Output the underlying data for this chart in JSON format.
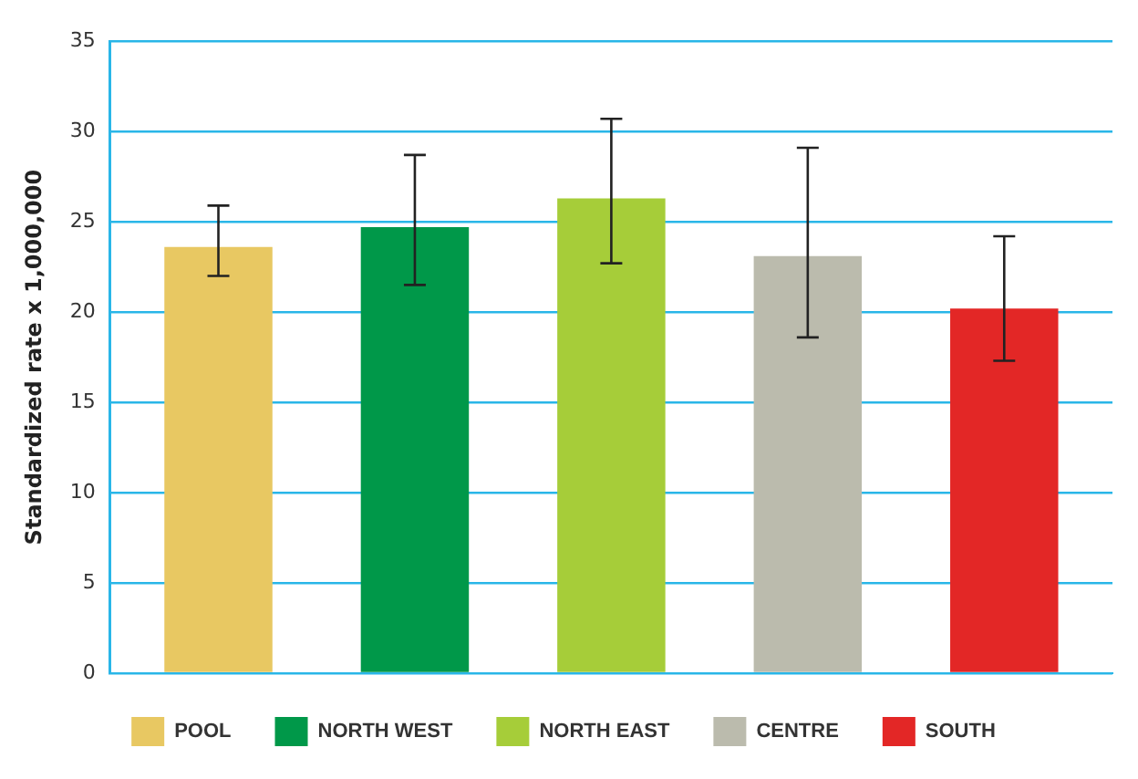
{
  "chart_data": {
    "type": "bar",
    "ylabel": "Standardized rate x 1,000,000",
    "categories": [
      null
    ],
    "series": [
      {
        "name": "POOL",
        "color": "#e8c862",
        "values": [
          23.6
        ],
        "errors": [
          [
            22.0,
            25.9
          ]
        ]
      },
      {
        "name": "NORTH WEST",
        "color": "#009849",
        "values": [
          24.7
        ],
        "errors": [
          [
            21.5,
            28.7
          ]
        ]
      },
      {
        "name": "NORTH EAST",
        "color": "#a6cd39",
        "values": [
          26.3
        ],
        "errors": [
          [
            22.7,
            30.7
          ]
        ]
      },
      {
        "name": "CENTRE",
        "color": "#bbbbad",
        "values": [
          23.1
        ],
        "errors": [
          [
            18.6,
            29.1
          ]
        ]
      },
      {
        "name": "SOUTH",
        "color": "#e32726",
        "values": [
          20.2
        ],
        "errors": [
          [
            17.3,
            24.2
          ]
        ]
      }
    ],
    "ylim": [
      0,
      35
    ],
    "yticks": [
      0,
      5,
      10,
      15,
      20,
      25,
      30,
      35
    ],
    "grid": "y",
    "legend": "bottom",
    "tick_labels": "y"
  }
}
